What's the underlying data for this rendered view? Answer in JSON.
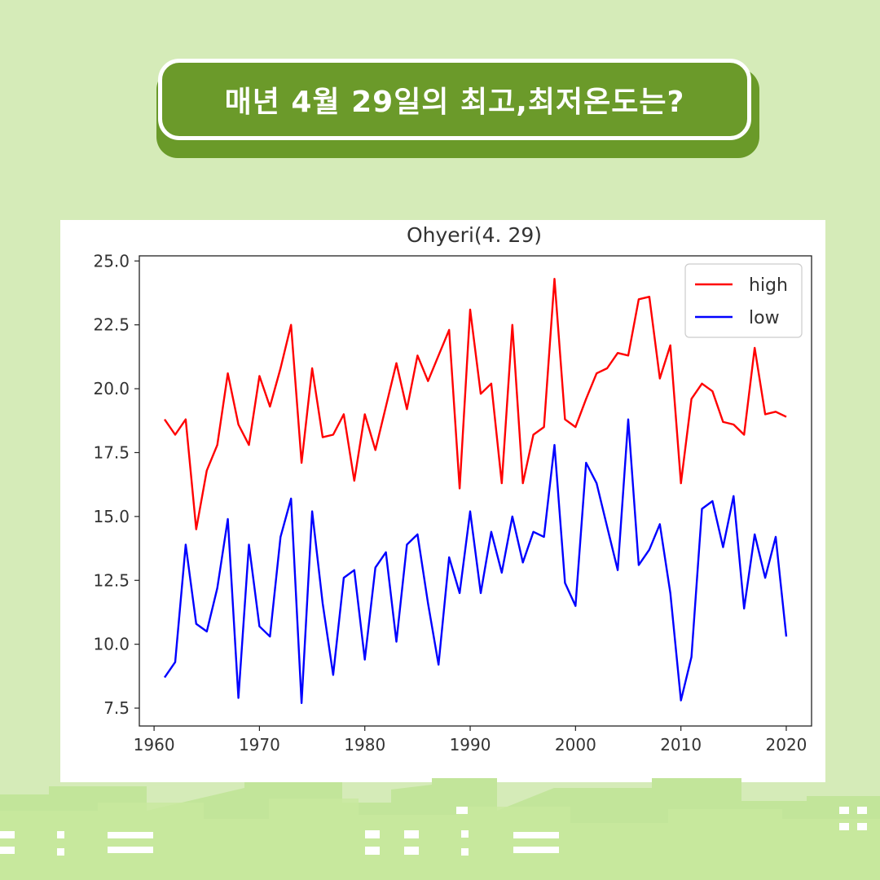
{
  "banner": {
    "title": "매년 4월 29일의 최고,최저온도는?"
  },
  "colors": {
    "background": "#d5ebb8",
    "banner": "#6b9a2a",
    "high": "#ff0000",
    "low": "#0000ff"
  },
  "chart_data": {
    "type": "line",
    "title": "Ohyeri(4. 29)",
    "xlabel": "",
    "ylabel": "",
    "xlim": [
      1958.6,
      2022.4
    ],
    "ylim": [
      6.8,
      25.2
    ],
    "x_ticks": [
      1960,
      1970,
      1980,
      1990,
      2000,
      2010,
      2020
    ],
    "x_tick_labels": [
      "1960",
      "1970",
      "1980",
      "1990",
      "2000",
      "2010",
      "2020"
    ],
    "y_ticks": [
      7.5,
      10.0,
      12.5,
      15.0,
      17.5,
      20.0,
      22.5,
      25.0
    ],
    "y_tick_labels": [
      "7.5",
      "10.0",
      "12.5",
      "15.0",
      "17.5",
      "20.0",
      "22.5",
      "25.0"
    ],
    "grid": false,
    "legend_position": "top-right",
    "x": [
      1961,
      1962,
      1963,
      1964,
      1965,
      1966,
      1967,
      1968,
      1969,
      1970,
      1971,
      1972,
      1973,
      1974,
      1975,
      1976,
      1977,
      1978,
      1979,
      1980,
      1981,
      1982,
      1983,
      1984,
      1985,
      1986,
      1987,
      1988,
      1989,
      1990,
      1991,
      1992,
      1993,
      1994,
      1995,
      1996,
      1997,
      1998,
      1999,
      2000,
      2001,
      2002,
      2003,
      2004,
      2005,
      2006,
      2007,
      2008,
      2009,
      2010,
      2011,
      2012,
      2013,
      2014,
      2015,
      2016,
      2017,
      2018,
      2019,
      2020
    ],
    "series": [
      {
        "name": "high",
        "color": "#ff0000",
        "values": [
          18.8,
          18.2,
          18.8,
          14.5,
          16.8,
          17.8,
          20.6,
          18.6,
          17.8,
          20.5,
          19.3,
          20.8,
          22.5,
          17.1,
          20.8,
          18.1,
          18.2,
          19.0,
          16.4,
          19.0,
          17.6,
          19.3,
          21.0,
          19.2,
          21.3,
          20.3,
          21.3,
          22.3,
          16.1,
          23.1,
          19.8,
          20.2,
          16.3,
          22.5,
          16.3,
          18.2,
          18.5,
          24.3,
          18.8,
          18.5,
          19.6,
          20.6,
          20.8,
          21.4,
          21.3,
          23.5,
          23.6,
          20.4,
          21.7,
          16.3,
          19.6,
          20.2,
          19.9,
          18.7,
          18.6,
          18.2,
          21.6,
          19.0,
          19.1,
          18.9
        ]
      },
      {
        "name": "low",
        "color": "#0000ff",
        "values": [
          8.7,
          9.3,
          13.9,
          10.8,
          10.5,
          12.2,
          14.9,
          7.9,
          13.9,
          10.7,
          10.3,
          14.2,
          15.7,
          7.7,
          15.2,
          11.6,
          8.8,
          12.6,
          12.9,
          9.4,
          13.0,
          13.6,
          10.1,
          13.9,
          14.3,
          11.6,
          9.2,
          13.4,
          12.0,
          15.2,
          12.0,
          14.4,
          12.8,
          15.0,
          13.2,
          14.4,
          14.2,
          17.8,
          12.4,
          11.5,
          17.1,
          16.3,
          14.6,
          12.9,
          18.8,
          13.1,
          13.7,
          14.7,
          12.0,
          7.8,
          9.5,
          15.3,
          15.6,
          13.8,
          15.8,
          11.4,
          14.3,
          12.6,
          14.2,
          10.3
        ]
      }
    ]
  }
}
